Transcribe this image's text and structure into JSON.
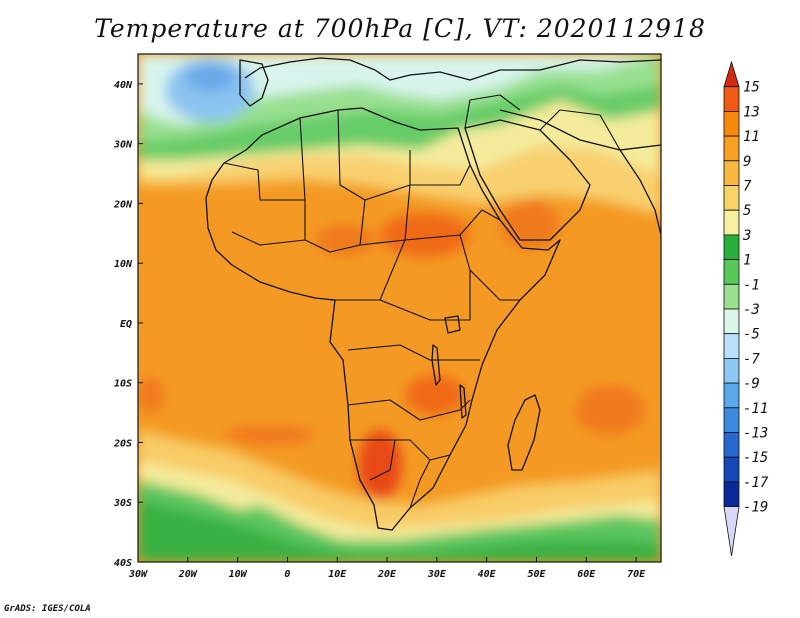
{
  "title": "Temperature at 700hPa [C], VT: 2020112918",
  "credit": "GrADS: IGES/COLA",
  "map": {
    "lon_range": [
      -30,
      75
    ],
    "lat_range": [
      -40,
      45
    ],
    "x_ticks": [
      "30W",
      "20W",
      "10W",
      "0",
      "10E",
      "20E",
      "30E",
      "40E",
      "50E",
      "60E",
      "70E"
    ],
    "y_ticks": [
      "40N",
      "30N",
      "20N",
      "10N",
      "EQ",
      "10S",
      "20S",
      "30S",
      "40S"
    ]
  },
  "colorbar": {
    "labels": [
      "15",
      "13",
      "11",
      "9",
      "7",
      "5",
      "3",
      "1",
      "-1",
      "-3",
      "-5",
      "-7",
      "-9",
      "-11",
      "-13",
      "-15",
      "-17",
      "-19"
    ],
    "colors": [
      "#d42a10",
      "#f05a14",
      "#f8880e",
      "#f8a022",
      "#f8b840",
      "#f8d468",
      "#f6f0a0",
      "#2aae3a",
      "#56c858",
      "#98e08c",
      "#daf6e8",
      "#b8e0f8",
      "#8cc8f4",
      "#5aa8ec",
      "#3c8ae0",
      "#2468d0",
      "#1448b8",
      "#0a2898",
      "#0a1468"
    ]
  },
  "colors": {
    "hot": "#f08c1c",
    "hotter": "#f06a18",
    "warm": "#f8b048",
    "mild": "#f8d880",
    "pale": "#f4f0a8",
    "green": "#64cc64",
    "dgreen": "#36b040",
    "cool": "#c8ecf4",
    "blue": "#7ab8ec"
  }
}
